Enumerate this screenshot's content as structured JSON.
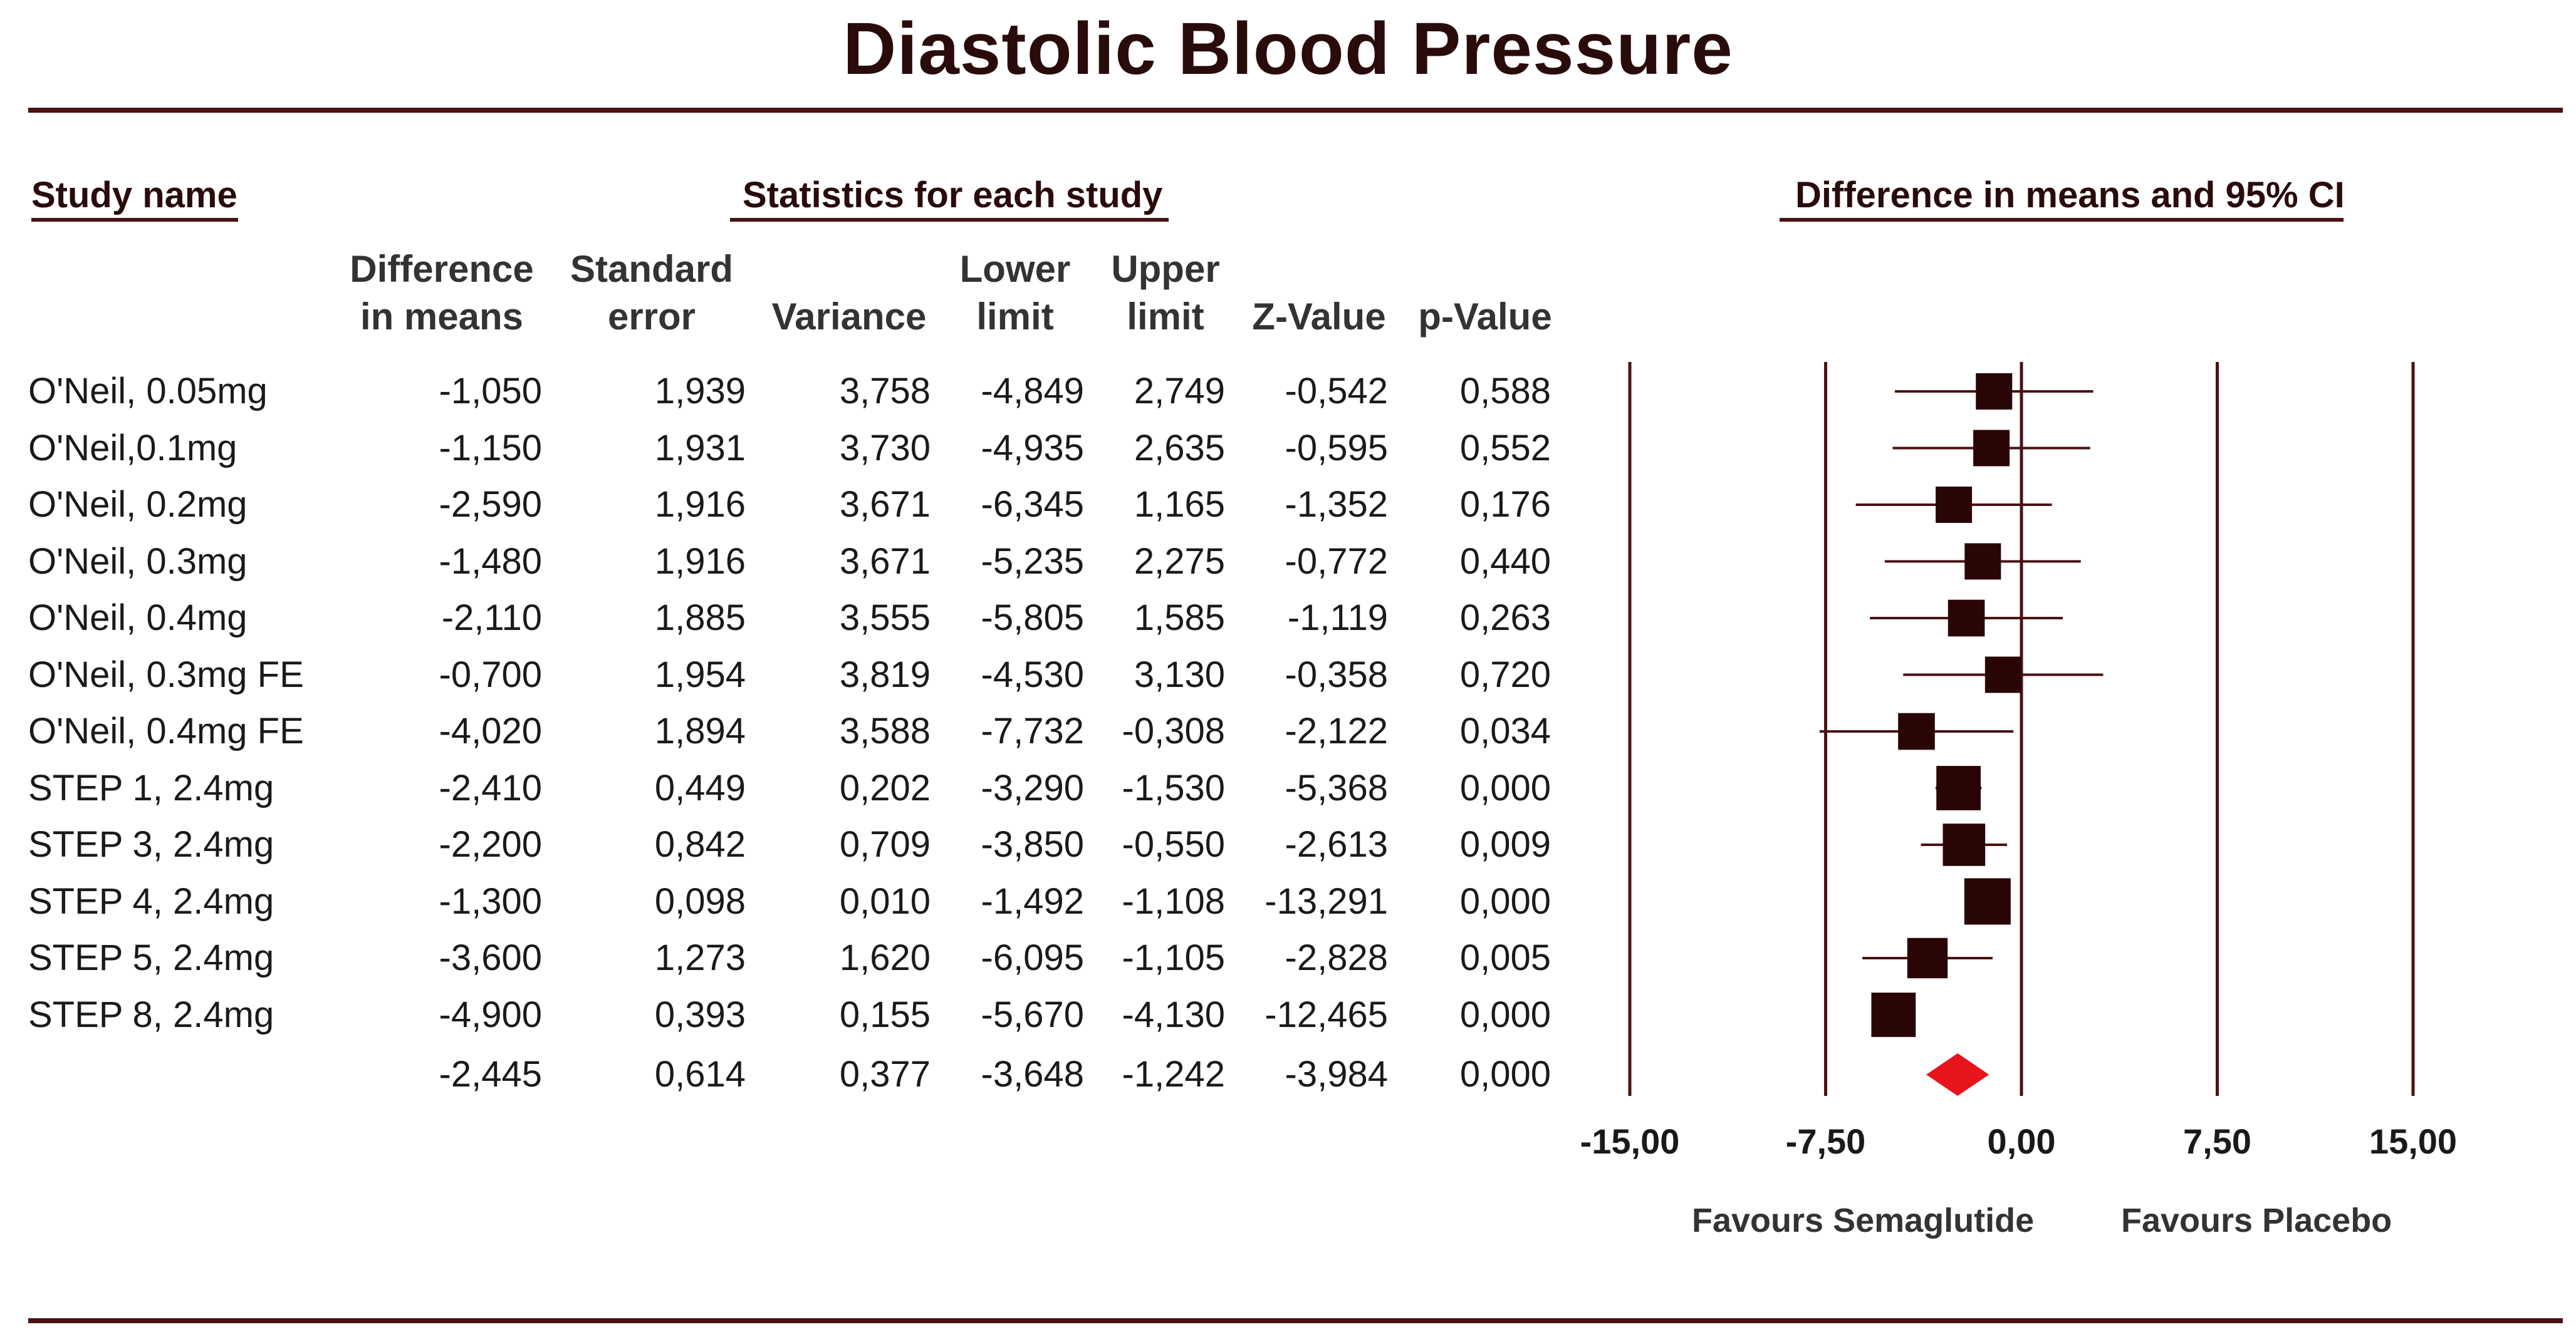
{
  "title": "Diastolic Blood Pressure",
  "headers": {
    "study_name": "Study name",
    "statistics": "Statistics for each study",
    "ci": "Difference in means and 95% CI"
  },
  "columns": [
    {
      "line1": "Difference",
      "line2": "in means"
    },
    {
      "line1": "Standard",
      "line2": "error"
    },
    {
      "line1": "",
      "line2": "Variance"
    },
    {
      "line1": "Lower",
      "line2": "limit"
    },
    {
      "line1": "Upper",
      "line2": "limit"
    },
    {
      "line1": "",
      "line2": "Z-Value"
    },
    {
      "line1": "",
      "line2": "p-Value"
    }
  ],
  "favours": {
    "left": "Favours Semaglutide",
    "right": "Favours Placebo"
  },
  "chart_data": {
    "type": "forest",
    "title": "Diastolic Blood Pressure",
    "xlim": [
      -15,
      15
    ],
    "xticks": [
      -15,
      -7.5,
      0,
      7.5,
      15
    ],
    "xtick_labels": [
      "-15,00",
      "-7,50",
      "0,00",
      "7,50",
      "15,00"
    ],
    "studies": [
      {
        "name": "O'Neil, 0.05mg",
        "diff": "-1,050",
        "se": "1,939",
        "var": "3,758",
        "lower": "-4,849",
        "upper": "2,749",
        "z": "-0,542",
        "p": "0,588",
        "d": -1.05,
        "lo": -4.849,
        "hi": 2.749,
        "weight": 0.5
      },
      {
        "name": "O'Neil,0.1mg",
        "diff": "-1,150",
        "se": "1,931",
        "var": "3,730",
        "lower": "-4,935",
        "upper": "2,635",
        "z": "-0,595",
        "p": "0,552",
        "d": -1.15,
        "lo": -4.935,
        "hi": 2.635,
        "weight": 0.5
      },
      {
        "name": "O'Neil, 0.2mg",
        "diff": "-2,590",
        "se": "1,916",
        "var": "3,671",
        "lower": "-6,345",
        "upper": "1,165",
        "z": "-1,352",
        "p": "0,176",
        "d": -2.59,
        "lo": -6.345,
        "hi": 1.165,
        "weight": 0.5
      },
      {
        "name": "O'Neil, 0.3mg",
        "diff": "-1,480",
        "se": "1,916",
        "var": "3,671",
        "lower": "-5,235",
        "upper": "2,275",
        "z": "-0,772",
        "p": "0,440",
        "d": -1.48,
        "lo": -5.235,
        "hi": 2.275,
        "weight": 0.5
      },
      {
        "name": "O'Neil, 0.4mg",
        "diff": "-2,110",
        "se": "1,885",
        "var": "3,555",
        "lower": "-5,805",
        "upper": "1,585",
        "z": "-1,119",
        "p": "0,263",
        "d": -2.11,
        "lo": -5.805,
        "hi": 1.585,
        "weight": 0.52
      },
      {
        "name": "O'Neil, 0.3mg FE",
        "diff": "-0,700",
        "se": "1,954",
        "var": "3,819",
        "lower": "-4,530",
        "upper": "3,130",
        "z": "-0,358",
        "p": "0,720",
        "d": -0.7,
        "lo": -4.53,
        "hi": 3.13,
        "weight": 0.5
      },
      {
        "name": "O'Neil, 0.4mg FE",
        "diff": "-4,020",
        "se": "1,894",
        "var": "3,588",
        "lower": "-7,732",
        "upper": "-0,308",
        "z": "-2,122",
        "p": "0,034",
        "d": -4.02,
        "lo": -7.732,
        "hi": -0.308,
        "weight": 0.52
      },
      {
        "name": "STEP 1, 2.4mg",
        "diff": "-2,410",
        "se": "0,449",
        "var": "0,202",
        "lower": "-3,290",
        "upper": "-1,530",
        "z": "-5,368",
        "p": "0,000",
        "d": -2.41,
        "lo": -3.29,
        "hi": -1.53,
        "weight": 0.9
      },
      {
        "name": "STEP 3, 2.4mg",
        "diff": "-2,200",
        "se": "0,842",
        "var": "0,709",
        "lower": "-3,850",
        "upper": "-0,550",
        "z": "-2,613",
        "p": "0,009",
        "d": -2.2,
        "lo": -3.85,
        "hi": -0.55,
        "weight": 0.8
      },
      {
        "name": "STEP 4, 2.4mg",
        "diff": "-1,300",
        "se": "0,098",
        "var": "0,010",
        "lower": "-1,492",
        "upper": "-1,108",
        "z": "-13,291",
        "p": "0,000",
        "d": -1.3,
        "lo": -1.492,
        "hi": -1.108,
        "weight": 1.0
      },
      {
        "name": "STEP 5, 2.4mg",
        "diff": "-3,600",
        "se": "1,273",
        "var": "1,620",
        "lower": "-6,095",
        "upper": "-1,105",
        "z": "-2,828",
        "p": "0,005",
        "d": -3.6,
        "lo": -6.095,
        "hi": -1.105,
        "weight": 0.7
      },
      {
        "name": "STEP 8, 2.4mg",
        "diff": "-4,900",
        "se": "0,393",
        "var": "0,155",
        "lower": "-5,670",
        "upper": "-4,130",
        "z": "-12,465",
        "p": "0,000",
        "d": -4.9,
        "lo": -5.67,
        "hi": -4.13,
        "weight": 0.9
      }
    ],
    "summary": {
      "name": "",
      "diff": "-2,445",
      "se": "0,614",
      "var": "0,377",
      "lower": "-3,648",
      "upper": "-1,242",
      "z": "-3,984",
      "p": "0,000",
      "d": -2.445,
      "lo": -3.648,
      "hi": -1.242
    },
    "colors": {
      "line": "#4a1212",
      "marker": "#2a0505",
      "summary": "#e8141c"
    }
  }
}
